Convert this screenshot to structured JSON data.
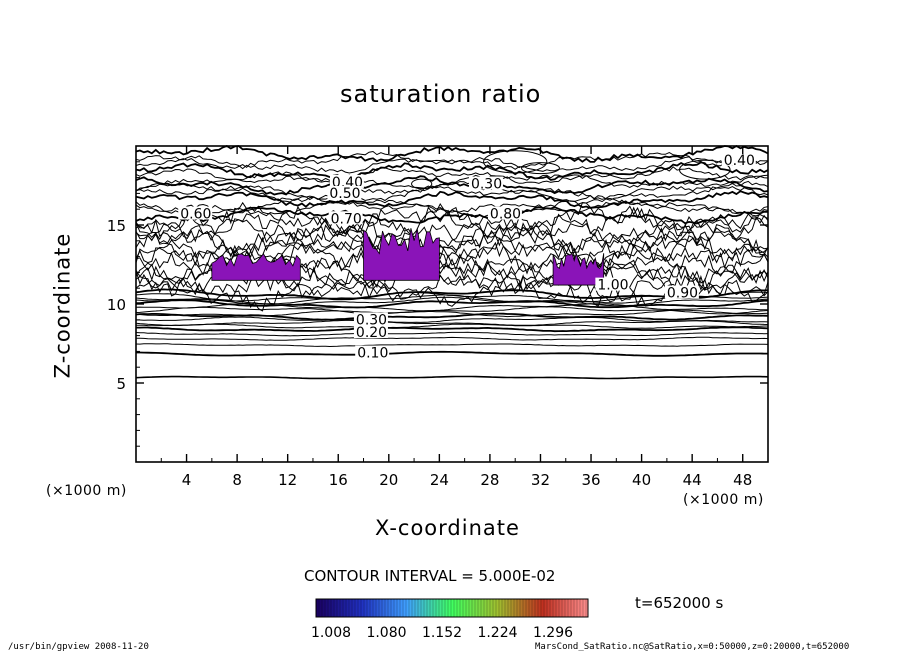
{
  "chart_data": {
    "type": "contour",
    "title": "saturation ratio",
    "xlabel": "X-coordinate",
    "ylabel": "Z-coordinate",
    "xunit": "(×1000 m)",
    "yunit": "(×1000 m)",
    "xlim": [
      0,
      50
    ],
    "ylim": [
      0,
      20
    ],
    "xticks": [
      4,
      8,
      12,
      16,
      20,
      24,
      28,
      32,
      36,
      40,
      44,
      48
    ],
    "yticks": [
      5,
      10,
      15
    ],
    "contour_interval_label": "CONTOUR INTERVAL = 5.000E-02",
    "contour_labels": [
      {
        "text": "0.10",
        "x": 17.5,
        "z": 6.8
      },
      {
        "text": "0.20",
        "x": 17.4,
        "z": 8.1
      },
      {
        "text": "0.30",
        "x": 17.4,
        "z": 8.9
      },
      {
        "text": "0.40",
        "x": 15.5,
        "z": 17.6
      },
      {
        "text": "0.50",
        "x": 15.3,
        "z": 16.9
      },
      {
        "text": "0.60",
        "x": 3.5,
        "z": 15.6
      },
      {
        "text": "0.70",
        "x": 15.4,
        "z": 15.3
      },
      {
        "text": "0.80",
        "x": 28.0,
        "z": 15.6
      },
      {
        "text": "0.90",
        "x": 42.0,
        "z": 10.6
      },
      {
        "text": "1.00",
        "x": 36.5,
        "z": 11.1
      },
      {
        "text": "0.30",
        "x": 26.5,
        "z": 17.5
      },
      {
        "text": "0.40",
        "x": 46.5,
        "z": 19.0
      }
    ],
    "supersaturated_regions": [
      {
        "x": [
          6,
          13
        ],
        "z": [
          11.5,
          13.2
        ]
      },
      {
        "x": [
          18,
          24
        ],
        "z": [
          11.5,
          14.8
        ]
      },
      {
        "x": [
          33,
          37
        ],
        "z": [
          11.2,
          13.3
        ]
      }
    ],
    "colorbar": {
      "ticks": [
        "1.008",
        "1.080",
        "1.152",
        "1.224",
        "1.296"
      ],
      "colors": [
        "#1a0060",
        "#2030c0",
        "#40a0ff",
        "#40ff60",
        "#a0c030",
        "#c03020",
        "#ff9090"
      ]
    },
    "time_label": "t=652000 s"
  },
  "footer": {
    "left": "/usr/bin/gpview   2008-11-20",
    "right": "MarsCond_SatRatio.nc@SatRatio,x=0:50000,z=0:20000,t=652000"
  },
  "colors": {
    "region_fill": "#8a14b8",
    "line": "#000000"
  }
}
